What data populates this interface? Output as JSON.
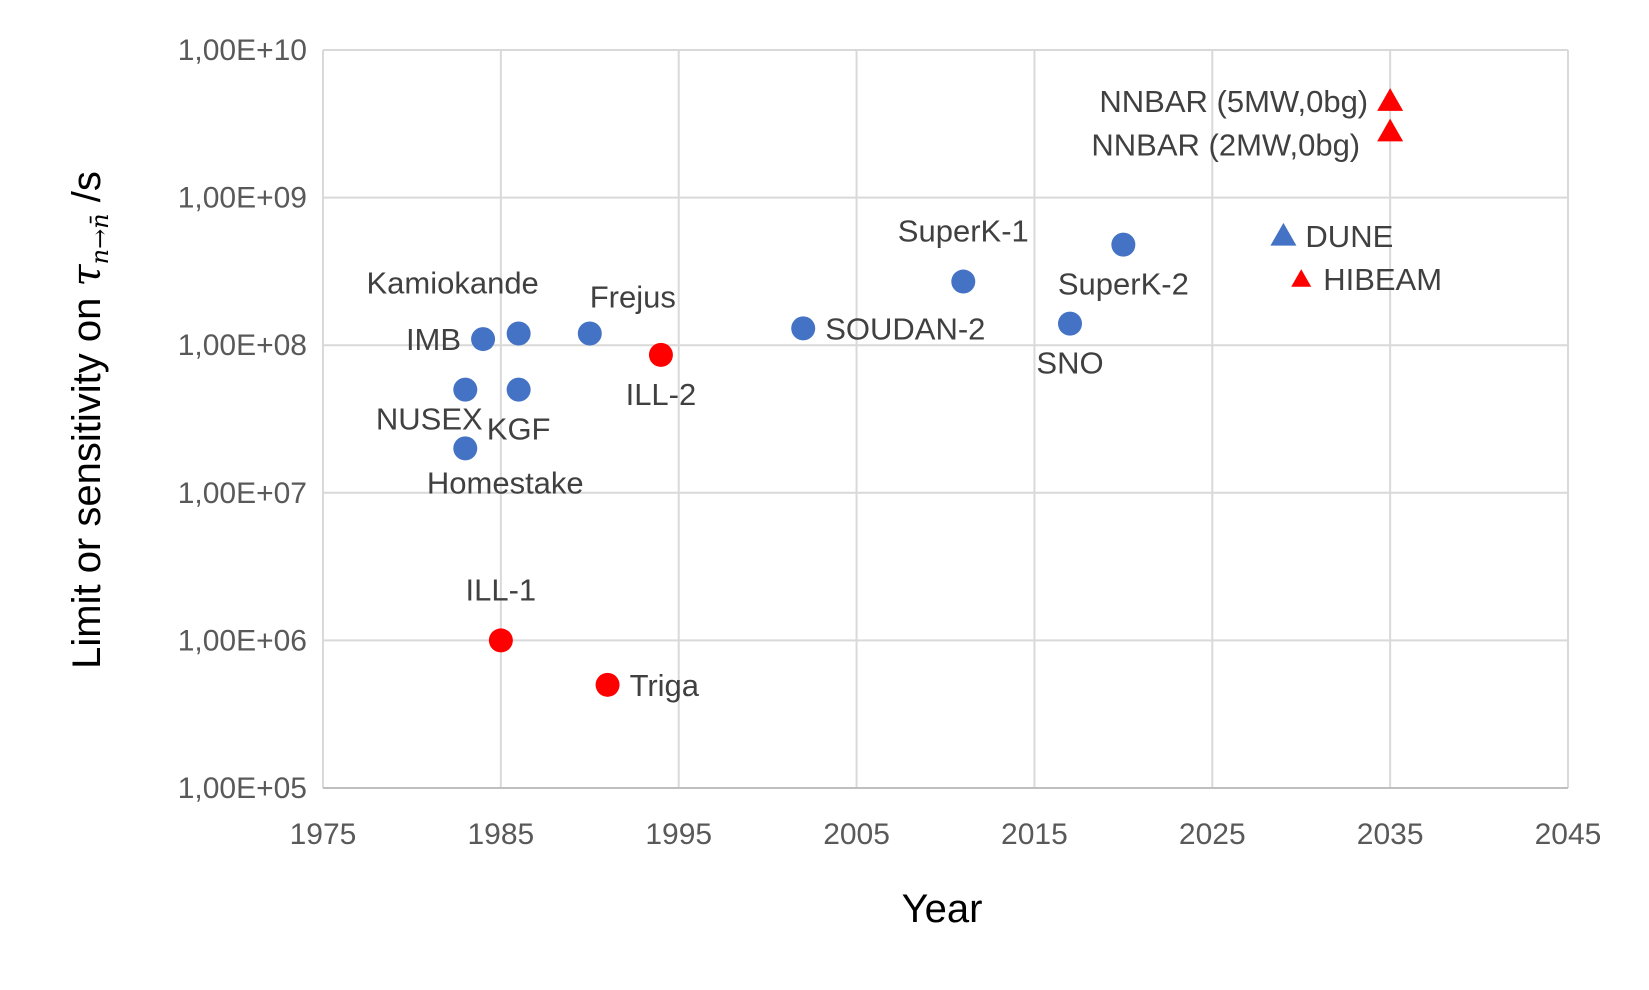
{
  "chart_data": {
    "type": "scatter",
    "xlabel": "Year",
    "ylabel": {
      "prefix": "Limit or sensitivity on ",
      "symbol": "τ",
      "subscript": "n→n̄",
      "suffix": " /s"
    },
    "xlim": [
      1975,
      2045
    ],
    "ylim": [
      100000,
      10000000000
    ],
    "yscale": "log",
    "grid": true,
    "xticks": [
      1975,
      1985,
      1995,
      2005,
      2015,
      2025,
      2035,
      2045
    ],
    "xtick_labels": [
      "1975",
      "1985",
      "1995",
      "2005",
      "2015",
      "2025",
      "2035",
      "2045"
    ],
    "yticks": [
      100000,
      1000000,
      10000000,
      100000000,
      1000000000,
      10000000000
    ],
    "ytick_labels": [
      "1,00E+05",
      "1,00E+06",
      "1,00E+07",
      "1,00E+08",
      "1,00E+09",
      "1,00E+10"
    ],
    "colors": {
      "blue": "#4472C4",
      "red": "#FF0000",
      "grid": "#D9D9D9"
    },
    "points": [
      {
        "label": "Kamiokande",
        "x": 1986,
        "y": 120000000,
        "color": "blue",
        "marker": "circle",
        "label_pos": "above-left"
      },
      {
        "label": "IMB",
        "x": 1984,
        "y": 110000000,
        "color": "blue",
        "marker": "circle",
        "label_pos": "left"
      },
      {
        "label": "NUSEX",
        "x": 1983,
        "y": 50000000,
        "color": "blue",
        "marker": "circle",
        "label_pos": "below-left"
      },
      {
        "label": "KGF",
        "x": 1986,
        "y": 50000000,
        "color": "blue",
        "marker": "circle",
        "label_pos": "below"
      },
      {
        "label": "Homestake",
        "x": 1983,
        "y": 20000000,
        "color": "blue",
        "marker": "circle",
        "label_pos": "below-right"
      },
      {
        "label": "Frejus",
        "x": 1990,
        "y": 120000000,
        "color": "blue",
        "marker": "circle",
        "label_pos": "above-right"
      },
      {
        "label": "SOUDAN-2",
        "x": 2002,
        "y": 130000000,
        "color": "blue",
        "marker": "circle",
        "label_pos": "right"
      },
      {
        "label": "SuperK-1",
        "x": 2011,
        "y": 270000000,
        "color": "blue",
        "marker": "circle",
        "label_pos": "above"
      },
      {
        "label": "SNO",
        "x": 2017,
        "y": 140000000,
        "color": "blue",
        "marker": "circle",
        "label_pos": "below"
      },
      {
        "label": "SuperK-2",
        "x": 2020,
        "y": 480000000,
        "color": "blue",
        "marker": "circle",
        "label_pos": "below"
      },
      {
        "label": "ILL-1",
        "x": 1985,
        "y": 1000000,
        "color": "red",
        "marker": "circle",
        "label_pos": "above"
      },
      {
        "label": "ILL-2",
        "x": 1994,
        "y": 86000000,
        "color": "red",
        "marker": "circle",
        "label_pos": "below"
      },
      {
        "label": "Triga",
        "x": 1991,
        "y": 500000,
        "color": "red",
        "marker": "circle",
        "label_pos": "right"
      },
      {
        "label": "DUNE",
        "x": 2029,
        "y": 550000000,
        "color": "blue",
        "marker": "triangle",
        "label_pos": "right"
      },
      {
        "label": "HIBEAM",
        "x": 2030,
        "y": 280000000,
        "color": "red",
        "marker": "triangle-small",
        "label_pos": "right"
      },
      {
        "label": "NNBAR (5MW,0bg)",
        "x": 2035,
        "y": 4500000000,
        "color": "red",
        "marker": "triangle",
        "label_pos": "left"
      },
      {
        "label": "NNBAR (2MW,0bg)",
        "x": 2035,
        "y": 2800000000,
        "color": "red",
        "marker": "triangle",
        "label_pos": "left-below"
      }
    ]
  }
}
